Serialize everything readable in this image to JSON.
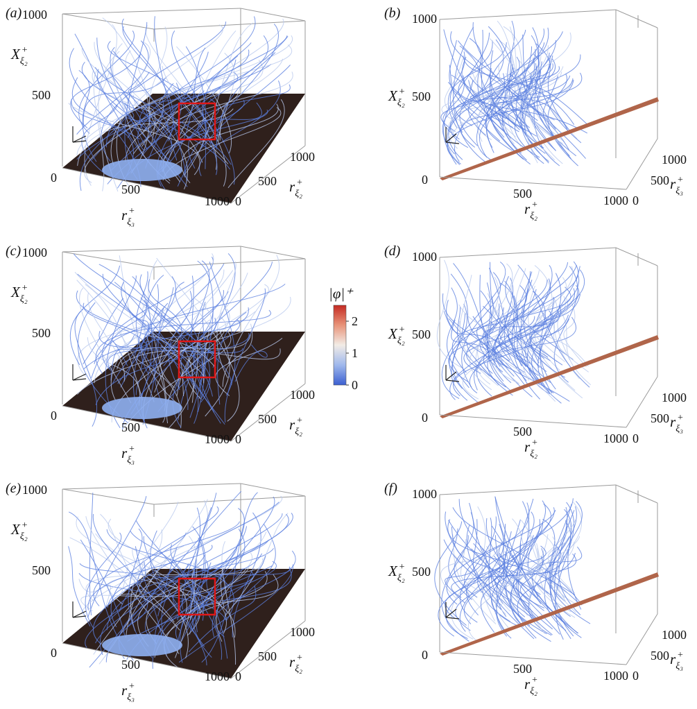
{
  "colorbar": {
    "title": "|φ|⁺",
    "ticks": [
      "2",
      "1",
      "0"
    ],
    "ticks_values": [
      2,
      1,
      0
    ],
    "range": [
      0,
      2.5
    ],
    "colors": [
      "#3b5fd1",
      "#9fb8ec",
      "#f2ece6",
      "#e8947a",
      "#c42a22"
    ]
  },
  "colors": {
    "streamline": "#5b7fe0",
    "streamline_light": "#b9c9ee",
    "dark_plane": "#2f201c",
    "tilted_plane": "#b0654a",
    "highlight_box": "#e01818",
    "box_edges": "#9a9a9a"
  },
  "chart_data": [
    {
      "panel": "(a)",
      "type": "streamline-3d",
      "view": "oblique",
      "zlabel": "X",
      "zlabel_sub": "ξ₂",
      "zlabel_sup": "+",
      "xlabel": "r",
      "xlabel_sub": "ξ₃",
      "xlabel_sup": "+",
      "ylabel": "r",
      "ylabel_sub": "ξ₂",
      "ylabel_sup": "+",
      "zticks": [
        "1000",
        "500",
        "0"
      ],
      "xticks": [
        "500",
        "1000"
      ],
      "yticks": [
        "1000",
        "500",
        "0"
      ],
      "xlim": [
        0,
        1000
      ],
      "ylim": [
        0,
        1000
      ],
      "zlim": [
        0,
        1000
      ],
      "highlight_box": true
    },
    {
      "panel": "(b)",
      "type": "streamline-3d",
      "view": "side",
      "zlabel": "X",
      "zlabel_sub": "ξ₂",
      "zlabel_sup": "+",
      "xlabel": "r",
      "xlabel_sub": "ξ₂",
      "xlabel_sup": "+",
      "ylabel": "r",
      "ylabel_sub": "ξ₃",
      "ylabel_sup": "+",
      "zticks": [
        "1000",
        "500",
        "0"
      ],
      "xticks": [
        "500",
        "1000"
      ],
      "yticks": [
        "1000",
        "500",
        "0"
      ],
      "xlim": [
        0,
        1000
      ],
      "ylim": [
        0,
        1000
      ],
      "zlim": [
        0,
        1000
      ],
      "highlight_box": false
    },
    {
      "panel": "(c)",
      "type": "streamline-3d",
      "view": "oblique",
      "zlabel": "X",
      "zlabel_sub": "ξ₂",
      "zlabel_sup": "+",
      "xlabel": "r",
      "xlabel_sub": "ξ₃",
      "xlabel_sup": "+",
      "ylabel": "r",
      "ylabel_sub": "ξ₂",
      "ylabel_sup": "+",
      "zticks": [
        "1000",
        "500",
        "0"
      ],
      "xticks": [
        "500",
        "1000"
      ],
      "yticks": [
        "1000",
        "500",
        "0"
      ],
      "xlim": [
        0,
        1000
      ],
      "ylim": [
        0,
        1000
      ],
      "zlim": [
        0,
        1000
      ],
      "highlight_box": true
    },
    {
      "panel": "(d)",
      "type": "streamline-3d",
      "view": "side",
      "zlabel": "X",
      "zlabel_sub": "ξ₂",
      "zlabel_sup": "+",
      "xlabel": "r",
      "xlabel_sub": "ξ₂",
      "xlabel_sup": "+",
      "ylabel": "r",
      "ylabel_sub": "ξ₃",
      "ylabel_sup": "+",
      "zticks": [
        "1000",
        "500",
        "0"
      ],
      "xticks": [
        "500",
        "1000"
      ],
      "yticks": [
        "1000",
        "500",
        "0"
      ],
      "xlim": [
        0,
        1000
      ],
      "ylim": [
        0,
        1000
      ],
      "zlim": [
        0,
        1000
      ],
      "highlight_box": false
    },
    {
      "panel": "(e)",
      "type": "streamline-3d",
      "view": "oblique",
      "zlabel": "X",
      "zlabel_sub": "ξ₂",
      "zlabel_sup": "+",
      "xlabel": "r",
      "xlabel_sub": "ξ₃",
      "xlabel_sup": "+",
      "ylabel": "r",
      "ylabel_sub": "ξ₂",
      "ylabel_sup": "+",
      "zticks": [
        "1000",
        "500",
        "0"
      ],
      "xticks": [
        "500",
        "1000"
      ],
      "yticks": [
        "1000",
        "500",
        "0"
      ],
      "xlim": [
        0,
        1000
      ],
      "ylim": [
        0,
        1000
      ],
      "zlim": [
        0,
        1000
      ],
      "highlight_box": true
    },
    {
      "panel": "(f)",
      "type": "streamline-3d",
      "view": "side",
      "zlabel": "X",
      "zlabel_sub": "ξ₂",
      "zlabel_sup": "+",
      "xlabel": "r",
      "xlabel_sub": "ξ₂",
      "xlabel_sup": "+",
      "ylabel": "r",
      "ylabel_sub": "ξ₃",
      "ylabel_sup": "+",
      "zticks": [
        "1000",
        "500",
        "0"
      ],
      "xticks": [
        "500",
        "1000"
      ],
      "yticks": [
        "1000",
        "500",
        "0"
      ],
      "xlim": [
        0,
        1000
      ],
      "ylim": [
        0,
        1000
      ],
      "zlim": [
        0,
        1000
      ],
      "highlight_box": false
    }
  ]
}
